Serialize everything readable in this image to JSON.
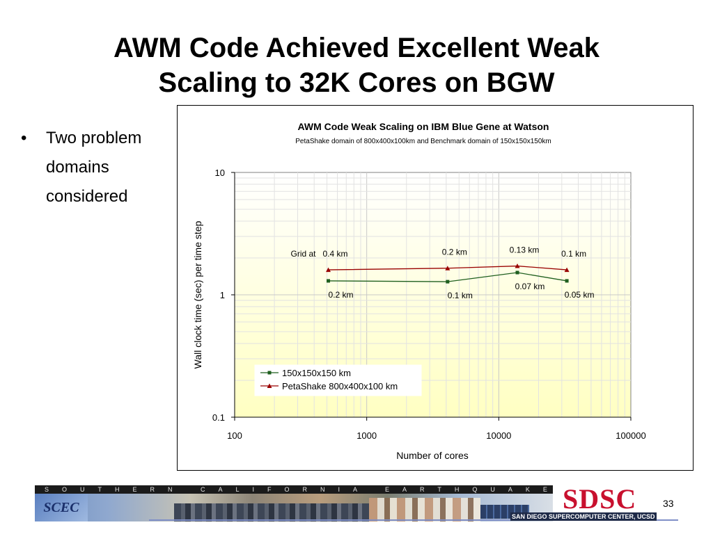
{
  "slide": {
    "title_line1": "AWM Code Achieved Excellent Weak",
    "title_line2": "Scaling to 32K Cores on BGW",
    "bullets": [
      "Two problem domains considered"
    ],
    "page_number": "33"
  },
  "footer": {
    "banner_text": "SOUTHERN CALIFORNIA EARTHQUAKE CENTER",
    "left_logo": "SCEC",
    "right_logo": "SDSC",
    "right_logo_sub": "SAN DIEGO SUPERCOMPUTER CENTER, UCSD"
  },
  "chart_data": {
    "type": "line",
    "title": "AWM Code Weak Scaling on IBM Blue Gene at Watson",
    "subtitle": "PetaShake domain of 800x400x100km and Benchmark domain of 150x150x150km",
    "xlabel": "Number of cores",
    "ylabel": "Wall clock time (sec) per time step",
    "x_scale": "log",
    "y_scale": "log",
    "xlim": [
      100,
      100000
    ],
    "ylim": [
      0.1,
      10
    ],
    "x_ticks": [
      "100",
      "1000",
      "10000",
      "100000"
    ],
    "y_ticks": [
      "0.1",
      "1",
      "10"
    ],
    "grid": true,
    "legend_position": "bottom-left",
    "series": [
      {
        "name": "150x150x150 km",
        "color": "#1f5f1f",
        "marker": "square",
        "x": [
          512,
          4096,
          13824,
          32768
        ],
        "y": [
          1.3,
          1.28,
          1.52,
          1.3
        ],
        "labels": [
          "0.2 km",
          "0.1 km",
          "0.07 km",
          "0.05 km"
        ]
      },
      {
        "name": "PetaShake 800x400x100 km",
        "color": "#990000",
        "marker": "triangle",
        "x": [
          512,
          4096,
          13824,
          32768
        ],
        "y": [
          1.6,
          1.65,
          1.72,
          1.6
        ],
        "labels": [
          "0.4 km",
          "0.2 km",
          "0.13 km",
          "0.1 km"
        ]
      }
    ],
    "annotation_prefix": "Grid at"
  }
}
